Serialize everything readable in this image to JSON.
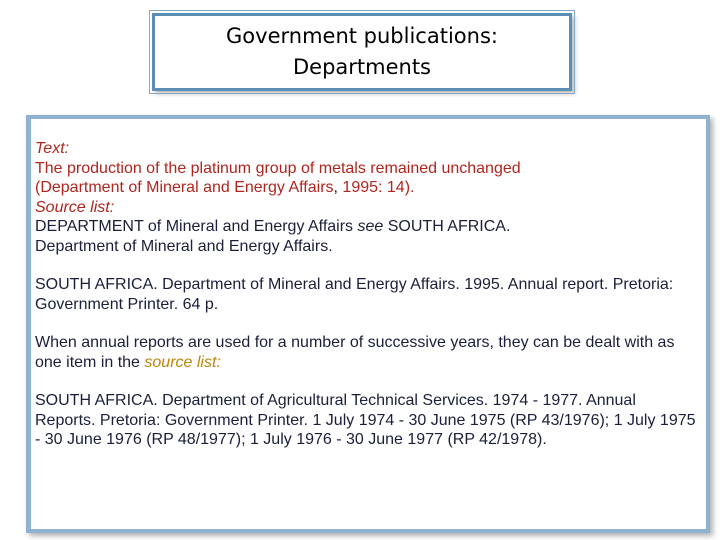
{
  "title": {
    "line1": "Government publications:",
    "line2": "Departments"
  },
  "body": {
    "text_label": "Text:",
    "text_line": "The production of the platinum group of metals remained unchanged",
    "text_cite_open": "(Department of Mineral and Energy Affairs",
    "text_cite_comma": ",",
    "text_cite_close": " 1995: 14).",
    "source_label": "Source list:",
    "xref_line1_a": "DEPARTMENT of Mineral and Energy Affairs ",
    "xref_see": "see",
    "xref_line1_b": " SOUTH AFRICA.",
    "xref_line2": "Department of Mineral and Energy Affairs.",
    "entry1": "SOUTH AFRICA. Department of Mineral and Energy Affairs. 1995. Annual report. Pretoria: Government Printer. 64 p.",
    "annual_note": "When annual reports are used for a number of successive years, they can be dealt with as one item in the ",
    "annual_note_emph": "source list:",
    "entry2": "SOUTH AFRICA. Department of Agricultural Technical Services. 1974 - 1977. Annual Reports. Pretoria: Government Printer. 1 July 1974 - 30 June 1975 (RP 43/1976); 1 July 1975 - 30 June 1976 (RP 48/1977); 1 July 1976 - 30 June 1977 (RP 42/1978)."
  }
}
